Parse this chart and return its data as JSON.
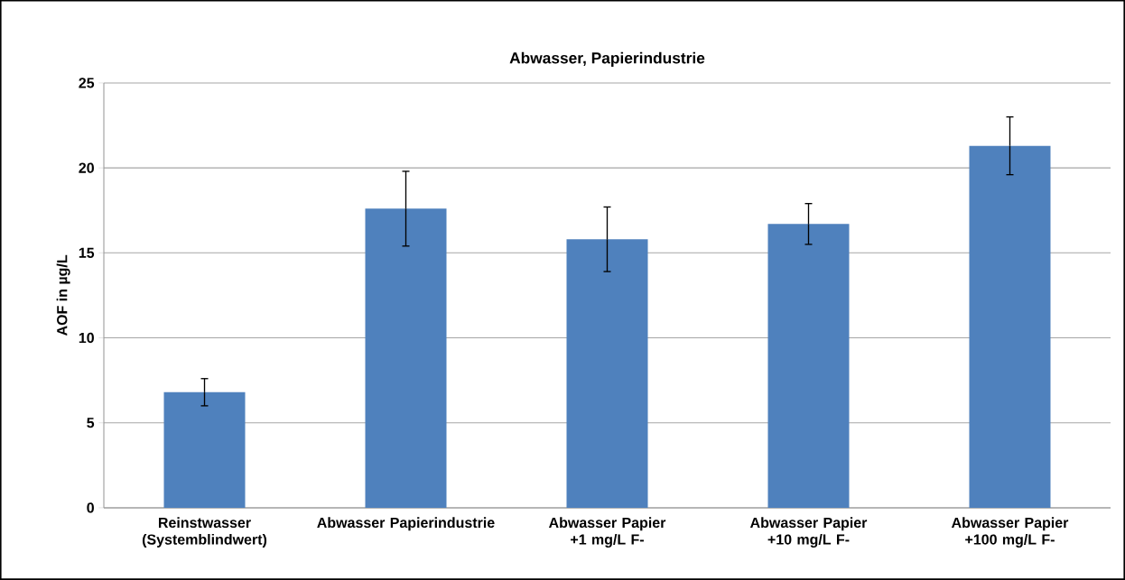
{
  "chart_data": {
    "type": "bar",
    "title": "Abwasser, Papierindustrie",
    "ylabel": "AOF in µg/L",
    "categories": [
      "Reinstwasser (Systemblindwert)",
      "Abwasser Papierindustrie",
      "Abwasser Papier +1 mg/L F-",
      "Abwasser Papier +10 mg/L F-",
      "Abwasser Papier +100 mg/L F-"
    ],
    "values": [
      6.8,
      17.6,
      15.8,
      16.7,
      21.3
    ],
    "errors": [
      0.8,
      2.2,
      1.9,
      1.2,
      1.7
    ],
    "color": "#4f81bd",
    "ylim": [
      0,
      25
    ],
    "yticks": [
      0,
      5,
      10,
      15,
      20,
      25
    ],
    "grid": "y"
  }
}
